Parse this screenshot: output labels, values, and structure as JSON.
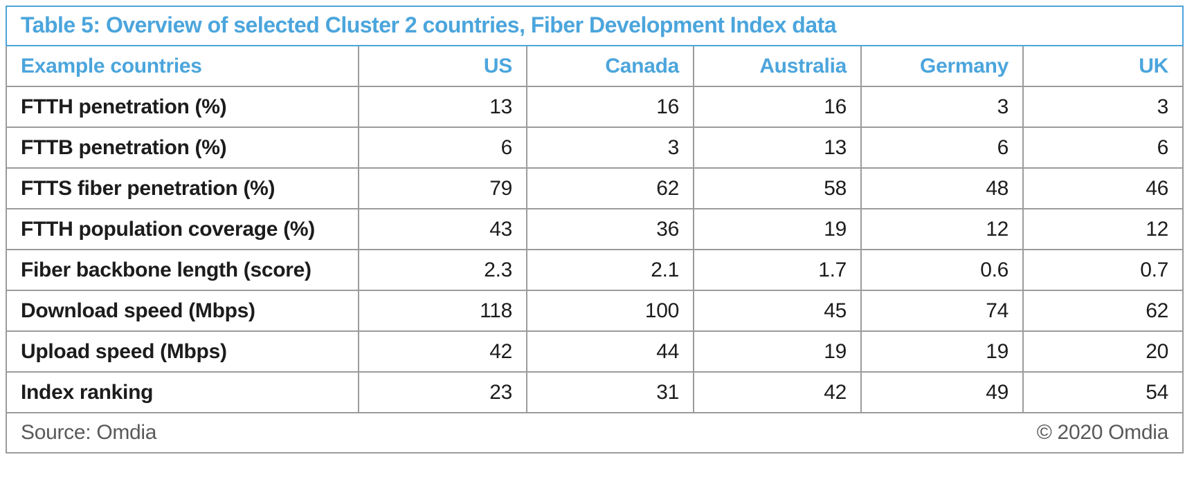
{
  "colors": {
    "accent_blue": "#4BA5DC",
    "grid_gray": "#9B9B9B",
    "footer_gray": "#595959",
    "body_text": "#1C1C1C"
  },
  "table": {
    "title": "Table 5: Overview of selected Cluster 2 countries, Fiber Development Index data",
    "header": {
      "label": "Example countries",
      "columns": [
        "US",
        "Canada",
        "Australia",
        "Germany",
        "UK"
      ]
    },
    "rows": [
      {
        "label": "FTTH penetration (%)",
        "values": [
          "13",
          "16",
          "16",
          "3",
          "3"
        ]
      },
      {
        "label": "FTTB penetration (%)",
        "values": [
          "6",
          "3",
          "13",
          "6",
          "6"
        ]
      },
      {
        "label": "FTTS fiber penetration (%)",
        "values": [
          "79",
          "62",
          "58",
          "48",
          "46"
        ]
      },
      {
        "label": "FTTH population coverage (%)",
        "values": [
          "43",
          "36",
          "19",
          "12",
          "12"
        ]
      },
      {
        "label": "Fiber backbone length (score)",
        "values": [
          "2.3",
          "2.1",
          "1.7",
          "0.6",
          "0.7"
        ]
      },
      {
        "label": "Download speed (Mbps)",
        "values": [
          "118",
          "100",
          "45",
          "74",
          "62"
        ]
      },
      {
        "label": "Upload speed (Mbps)",
        "values": [
          "42",
          "44",
          "19",
          "19",
          "20"
        ]
      },
      {
        "label": "Index ranking",
        "values": [
          "23",
          "31",
          "42",
          "49",
          "54"
        ]
      }
    ],
    "footer": {
      "source": "Source: Omdia",
      "copyright": "© 2020 Omdia"
    }
  }
}
